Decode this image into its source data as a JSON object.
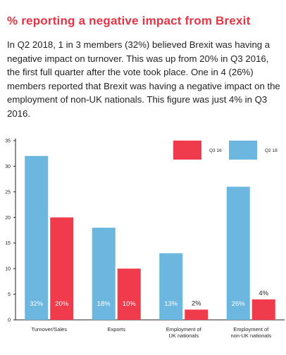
{
  "header": {
    "title": "% reporting a negative impact from Brexit",
    "body": "In Q2 2018, 1 in 3 members (32%) believed Brexit was having a negative impact on turnover.  This was up from 20% in Q3 2016, the first full quarter after the vote took place.  One in 4 (26%) members reported that Brexit was having a negative impact on the employment of non-UK nationals.  This figure was just 4% in Q3 2016."
  },
  "colors": {
    "title": "#e83344",
    "q3_16": "#ef3b4c",
    "q2_18": "#6bb7e0",
    "axis": "#231f20"
  },
  "chart_data": {
    "type": "bar",
    "categories": [
      [
        "Turnover/Sales"
      ],
      [
        "Exports"
      ],
      [
        "Employment of",
        "UK nationals"
      ],
      [
        "Employment of",
        "non-UK nationals"
      ]
    ],
    "series": [
      {
        "name": "Q2 18",
        "color": "#6bb7e0",
        "values": [
          32,
          18,
          13,
          26
        ],
        "labels": [
          "32%",
          "18%",
          "13%",
          "26%"
        ]
      },
      {
        "name": "Q3 16",
        "color": "#ef3b4c",
        "values": [
          20,
          10,
          2,
          4
        ],
        "labels": [
          "20%",
          "10%",
          "2%",
          "4%"
        ]
      }
    ],
    "ylim": [
      0,
      35
    ],
    "yticks": [
      0,
      5,
      10,
      15,
      20,
      25,
      30,
      35
    ],
    "legend_placement": "top-right",
    "legend_order": [
      "Q3 16",
      "Q2 18"
    ],
    "title": "",
    "xlabel": "",
    "ylabel": ""
  }
}
